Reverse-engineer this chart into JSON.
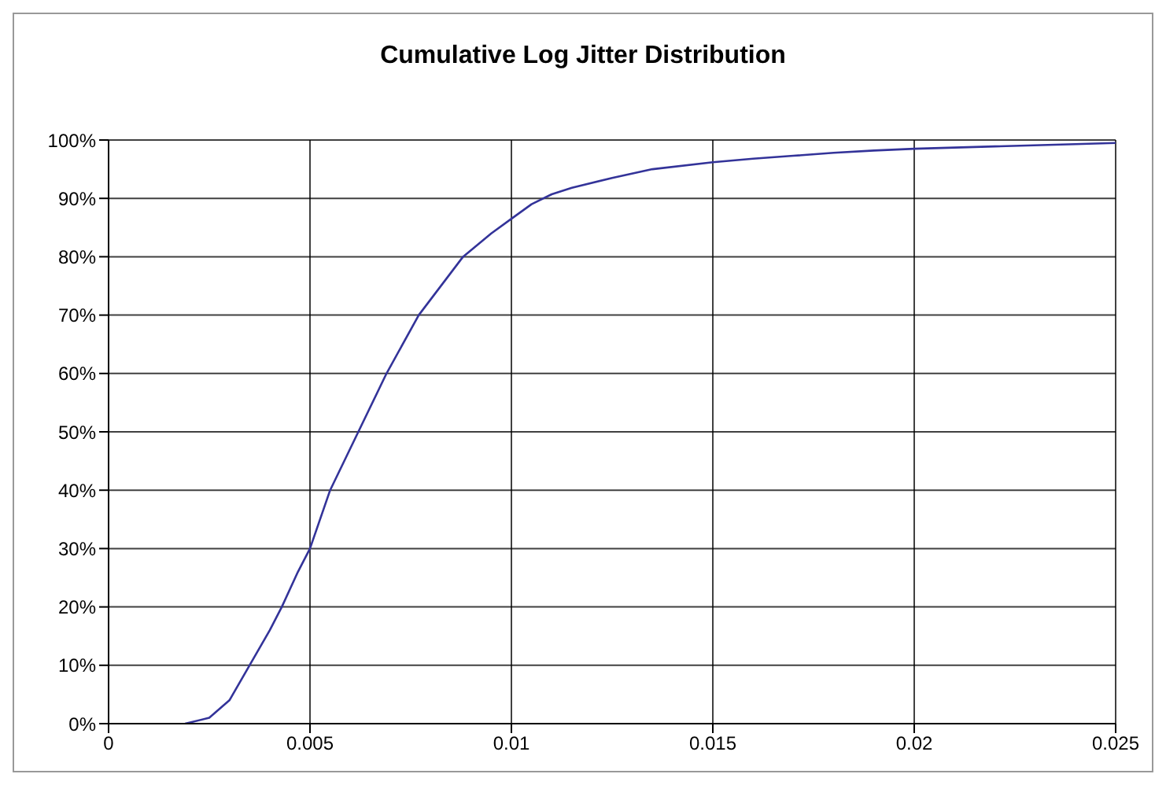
{
  "chart_data": {
    "type": "line",
    "title": "Cumulative Log Jitter Distribution",
    "x": [
      0.0019,
      0.0025,
      0.003,
      0.0035,
      0.004,
      0.0043,
      0.0047,
      0.005,
      0.0055,
      0.0062,
      0.0069,
      0.0077,
      0.0088,
      0.0095,
      0.01,
      0.0105,
      0.011,
      0.0115,
      0.0125,
      0.0135,
      0.015,
      0.016,
      0.017,
      0.018,
      0.019,
      0.02,
      0.022,
      0.024,
      0.025
    ],
    "series": [
      {
        "color": "#333399",
        "values": [
          0,
          1,
          4,
          10,
          16,
          20,
          26,
          30,
          40,
          50,
          60,
          70,
          80,
          84,
          86.5,
          89,
          90.7,
          91.8,
          93.5,
          95,
          96.2,
          96.8,
          97.3,
          97.8,
          98.2,
          98.5,
          98.9,
          99.3,
          99.5
        ]
      }
    ],
    "xlim": [
      0,
      0.025
    ],
    "xticks": [
      0,
      0.005,
      0.01,
      0.015,
      0.02,
      0.025
    ],
    "ylim": [
      0,
      100
    ],
    "yticks": [
      {
        "value": 0,
        "label": "0%"
      },
      {
        "value": 10,
        "label": "10%"
      },
      {
        "value": 20,
        "label": "20%"
      },
      {
        "value": 30,
        "label": "30%"
      },
      {
        "value": 40,
        "label": "40%"
      },
      {
        "value": 50,
        "label": "50%"
      },
      {
        "value": 60,
        "label": "60%"
      },
      {
        "value": 70,
        "label": "70%"
      },
      {
        "value": 80,
        "label": "80%"
      },
      {
        "value": 90,
        "label": "90%"
      },
      {
        "value": 100,
        "label": "100%"
      }
    ],
    "grid": true,
    "legend": false,
    "marker": "none",
    "line_style": "solid"
  }
}
